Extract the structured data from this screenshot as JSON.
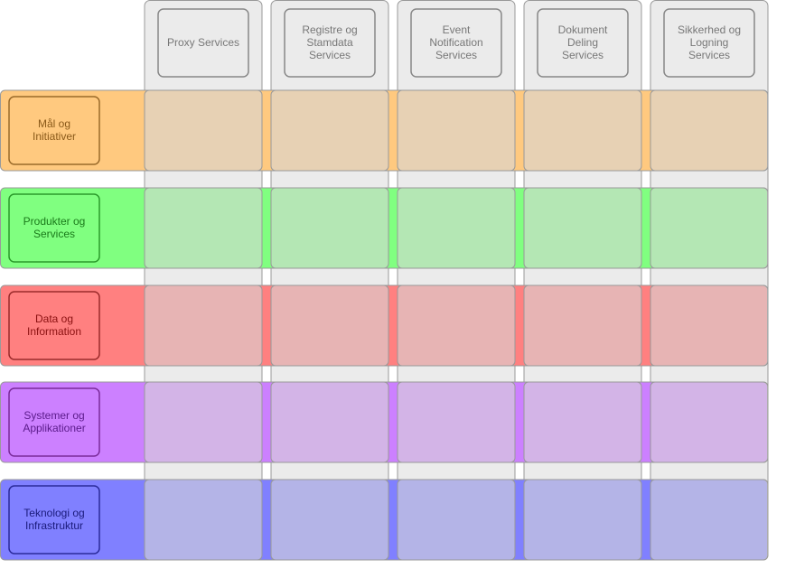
{
  "columns": [
    {
      "label": [
        "Proxy Services"
      ]
    },
    {
      "label": [
        "Registre og",
        "Stamdata",
        "Services"
      ]
    },
    {
      "label": [
        "Event",
        "Notification",
        "Services"
      ]
    },
    {
      "label": [
        "Dokument",
        "Deling",
        "Services"
      ]
    },
    {
      "label": [
        "Sikkerhed og",
        "Logning",
        "Services"
      ]
    }
  ],
  "rows": [
    {
      "label": [
        "Mål og",
        "Initiativer"
      ]
    },
    {
      "label": [
        "Produkter og",
        "Services"
      ]
    },
    {
      "label": [
        "Data og",
        "Information"
      ]
    },
    {
      "label": [
        "Systemer og",
        "Applikationer"
      ]
    },
    {
      "label": [
        "Teknologi og",
        "Infrastruktur"
      ]
    }
  ]
}
